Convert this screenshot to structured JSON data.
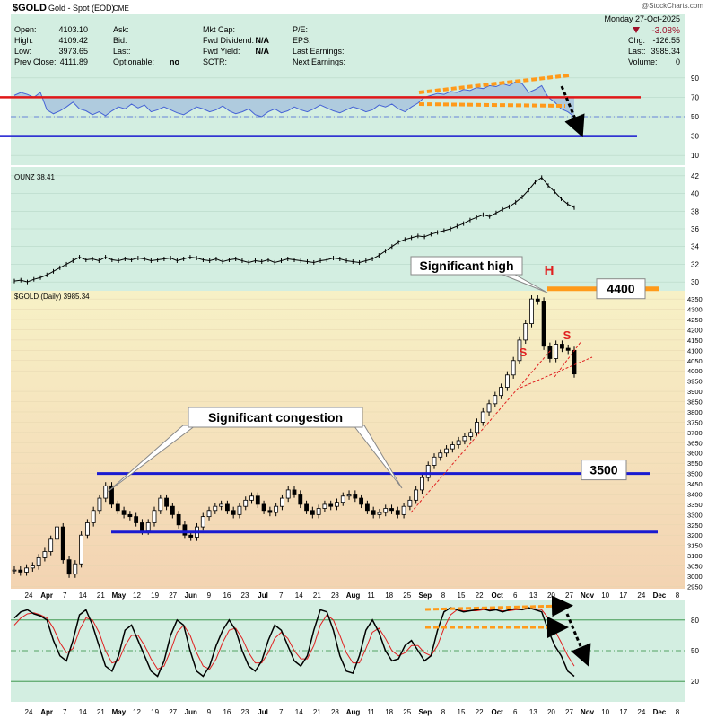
{
  "header": {
    "symbol": "$GOLD",
    "name": "Gold - Spot (EOD)",
    "exchange": "CME",
    "watermark": "@StockCharts.com",
    "date": "Monday 27-Oct-2025",
    "open_label": "Open:",
    "open": "4103.10",
    "high_label": "High:",
    "high": "4109.42",
    "low_label": "Low:",
    "low": "3973.65",
    "prev_close_label": "Prev Close:",
    "prev_close": "4111.89",
    "ask_label": "Ask:",
    "ask": "",
    "bid_label": "Bid:",
    "bid": "",
    "last_label": "Last:",
    "last_mid": "",
    "optionable_label": "Optionable:",
    "optionable": "no",
    "mkt_cap_label": "Mkt Cap:",
    "mkt_cap": "",
    "fwd_div_label": "Fwd Dividend:",
    "fwd_div": "N/A",
    "fwd_yield_label": "Fwd Yield:",
    "fwd_yield": "N/A",
    "sctr_label": "SCTR:",
    "sctr": "",
    "pe_label": "P/E:",
    "eps_label": "EPS:",
    "last_earn_label": "Last Earnings:",
    "next_earn_label": "Next Earnings:",
    "change_pct": "-3.08%",
    "chg_label": "Chg:",
    "chg": "-126.55",
    "last_label2": "Last:",
    "last": "3985.34",
    "volume_label": "Volume:",
    "volume": "0"
  },
  "colors": {
    "top_panel_bg": "#d3eee1",
    "price_bg_top": "#f7f1c6",
    "price_bg_bottom": "#f3d3b2",
    "rsi_line": "#4562d6",
    "red_level": "#e01818",
    "blue_level": "#1a1ad0",
    "orange_annot": "#ff9a1a",
    "candle": "#000000",
    "stoch_k": "#000000",
    "stoch_d": "#e02020"
  },
  "chart_data": [
    {
      "type": "line",
      "panel": "RSI",
      "yticks": [
        10,
        30,
        50,
        70,
        90
      ],
      "ylim": [
        0,
        100
      ],
      "levels": [
        70,
        30
      ],
      "dash_level": 50,
      "values": [
        72,
        75,
        73,
        70,
        75,
        57,
        53,
        56,
        60,
        65,
        58,
        56,
        52,
        55,
        51,
        56,
        60,
        58,
        63,
        59,
        62,
        55,
        57,
        60,
        57,
        54,
        52,
        56,
        60,
        58,
        55,
        57,
        61,
        56,
        53,
        55,
        58,
        52,
        50,
        55,
        58,
        54,
        56,
        60,
        57,
        55,
        58,
        62,
        59,
        56,
        54,
        57,
        60,
        58,
        55,
        57,
        62,
        60,
        63,
        58,
        55,
        60,
        64,
        70,
        72,
        74,
        73,
        76,
        75,
        78,
        77,
        80,
        79,
        82,
        81,
        84,
        82,
        86,
        84,
        75,
        78,
        82,
        70,
        65,
        58,
        55,
        50
      ]
    },
    {
      "type": "line",
      "panel": "Gold/Silver ratio",
      "label": "OUNZ 38.41",
      "yticks": [
        30,
        32,
        34,
        36,
        38,
        40,
        42
      ],
      "ylim": [
        29,
        43
      ],
      "values": [
        30.1,
        30.2,
        30.0,
        30.3,
        30.5,
        30.8,
        31.2,
        31.6,
        32.0,
        32.4,
        32.8,
        32.5,
        32.6,
        32.4,
        32.8,
        32.5,
        32.4,
        32.6,
        32.5,
        32.7,
        32.6,
        32.4,
        32.5,
        32.6,
        32.7,
        32.4,
        32.6,
        32.8,
        32.7,
        32.5,
        32.4,
        32.6,
        32.3,
        32.5,
        32.6,
        32.4,
        32.2,
        32.4,
        32.3,
        32.5,
        32.2,
        32.4,
        32.6,
        32.5,
        32.4,
        32.3,
        32.2,
        32.4,
        32.5,
        32.7,
        32.6,
        32.4,
        32.3,
        32.2,
        32.4,
        32.6,
        33.0,
        33.5,
        34.0,
        34.5,
        34.8,
        35.0,
        35.2,
        35.1,
        35.4,
        35.6,
        35.8,
        36.0,
        36.3,
        36.6,
        37.0,
        37.3,
        37.6,
        37.4,
        37.8,
        38.2,
        38.5,
        39.0,
        39.6,
        40.4,
        41.3,
        41.8,
        40.9,
        40.2,
        39.4,
        38.8,
        38.41
      ]
    },
    {
      "type": "candlestick",
      "panel": "price",
      "label": "$GOLD (Daily) 3985.34",
      "yticks": [
        2950,
        3000,
        3050,
        3100,
        3150,
        3200,
        3250,
        3300,
        3350,
        3400,
        3450,
        3500,
        3550,
        3600,
        3650,
        3700,
        3750,
        3800,
        3850,
        3900,
        3950,
        4000,
        4050,
        4100,
        4150,
        4200,
        4250,
        4300,
        4350
      ],
      "ylim": [
        2930,
        4390
      ],
      "close": [
        3030,
        3020,
        3040,
        3050,
        3090,
        3120,
        3180,
        3240,
        3080,
        3010,
        3060,
        3200,
        3260,
        3320,
        3380,
        3440,
        3350,
        3320,
        3300,
        3290,
        3260,
        3220,
        3260,
        3320,
        3380,
        3340,
        3300,
        3250,
        3200,
        3190,
        3240,
        3290,
        3320,
        3340,
        3350,
        3320,
        3300,
        3340,
        3370,
        3390,
        3350,
        3320,
        3310,
        3340,
        3380,
        3420,
        3400,
        3350,
        3320,
        3300,
        3330,
        3350,
        3340,
        3360,
        3390,
        3400,
        3380,
        3350,
        3320,
        3300,
        3310,
        3330,
        3320,
        3300,
        3340,
        3370,
        3420,
        3480,
        3540,
        3580,
        3600,
        3620,
        3640,
        3660,
        3680,
        3700,
        3750,
        3800,
        3840,
        3880,
        3920,
        3980,
        4050,
        4150,
        4230,
        4350,
        4340,
        4120,
        4060,
        4130,
        4110,
        4100,
        3985
      ],
      "levels": [
        {
          "value": 4400,
          "label": "4400"
        },
        {
          "value": 3500,
          "label": "3500"
        },
        {
          "value": 3215
        }
      ],
      "annotations": [
        "Significant high",
        "Significant congestion",
        "H",
        "S",
        "S"
      ]
    },
    {
      "type": "line",
      "panel": "Stochastic",
      "yticks": [
        20,
        50,
        80
      ],
      "ylim": [
        0,
        100
      ],
      "levels": [
        80,
        20
      ],
      "dash_level": 50,
      "series": [
        {
          "values": [
            82,
            88,
            90,
            86,
            84,
            80,
            60,
            45,
            40,
            60,
            85,
            90,
            75,
            55,
            35,
            30,
            45,
            70,
            75,
            60,
            45,
            30,
            25,
            40,
            65,
            80,
            75,
            50,
            30,
            25,
            35,
            55,
            70,
            80,
            70,
            50,
            35,
            30,
            40,
            60,
            75,
            70,
            55,
            40,
            35,
            45,
            70,
            90,
            88,
            70,
            45,
            30,
            28,
            45,
            70,
            80,
            68,
            50,
            40,
            42,
            55,
            60,
            50,
            40,
            45,
            70,
            88,
            92,
            90,
            88,
            89,
            90,
            91,
            89,
            90,
            88,
            90,
            91,
            90,
            92,
            90,
            88,
            70,
            55,
            45,
            30,
            25
          ]
        },
        {
          "values": [
            75,
            82,
            86,
            87,
            85,
            82,
            72,
            58,
            48,
            52,
            70,
            82,
            80,
            68,
            50,
            38,
            40,
            55,
            65,
            65,
            55,
            42,
            32,
            35,
            50,
            68,
            75,
            65,
            48,
            35,
            32,
            42,
            58,
            70,
            72,
            62,
            48,
            38,
            38,
            48,
            62,
            68,
            62,
            50,
            42,
            42,
            55,
            75,
            85,
            80,
            65,
            48,
            38,
            38,
            52,
            68,
            72,
            62,
            50,
            45,
            48,
            55,
            55,
            48,
            45,
            55,
            72,
            85,
            90,
            89,
            89,
            89,
            90,
            90,
            90,
            89,
            89,
            90,
            90,
            91,
            91,
            90,
            82,
            70,
            58,
            45,
            35
          ]
        }
      ]
    }
  ],
  "x_axis": {
    "labels": [
      {
        "t": "24",
        "bold": false
      },
      {
        "t": "Apr",
        "bold": true
      },
      {
        "t": "7",
        "bold": false
      },
      {
        "t": "14",
        "bold": false
      },
      {
        "t": "21",
        "bold": false
      },
      {
        "t": "May",
        "bold": true
      },
      {
        "t": "12",
        "bold": false
      },
      {
        "t": "19",
        "bold": false
      },
      {
        "t": "27",
        "bold": false
      },
      {
        "t": "Jun",
        "bold": true
      },
      {
        "t": "9",
        "bold": false
      },
      {
        "t": "16",
        "bold": false
      },
      {
        "t": "23",
        "bold": false
      },
      {
        "t": "Jul",
        "bold": true
      },
      {
        "t": "7",
        "bold": false
      },
      {
        "t": "14",
        "bold": false
      },
      {
        "t": "21",
        "bold": false
      },
      {
        "t": "28",
        "bold": false
      },
      {
        "t": "Aug",
        "bold": true
      },
      {
        "t": "11",
        "bold": false
      },
      {
        "t": "18",
        "bold": false
      },
      {
        "t": "25",
        "bold": false
      },
      {
        "t": "Sep",
        "bold": true
      },
      {
        "t": "8",
        "bold": false
      },
      {
        "t": "15",
        "bold": false
      },
      {
        "t": "22",
        "bold": false
      },
      {
        "t": "Oct",
        "bold": true
      },
      {
        "t": "6",
        "bold": false
      },
      {
        "t": "13",
        "bold": false
      },
      {
        "t": "20",
        "bold": false
      },
      {
        "t": "27",
        "bold": false
      },
      {
        "t": "Nov",
        "bold": true
      },
      {
        "t": "10",
        "bold": false
      },
      {
        "t": "17",
        "bold": false
      },
      {
        "t": "24",
        "bold": false
      },
      {
        "t": "Dec",
        "bold": true
      },
      {
        "t": "8",
        "bold": false
      }
    ]
  }
}
